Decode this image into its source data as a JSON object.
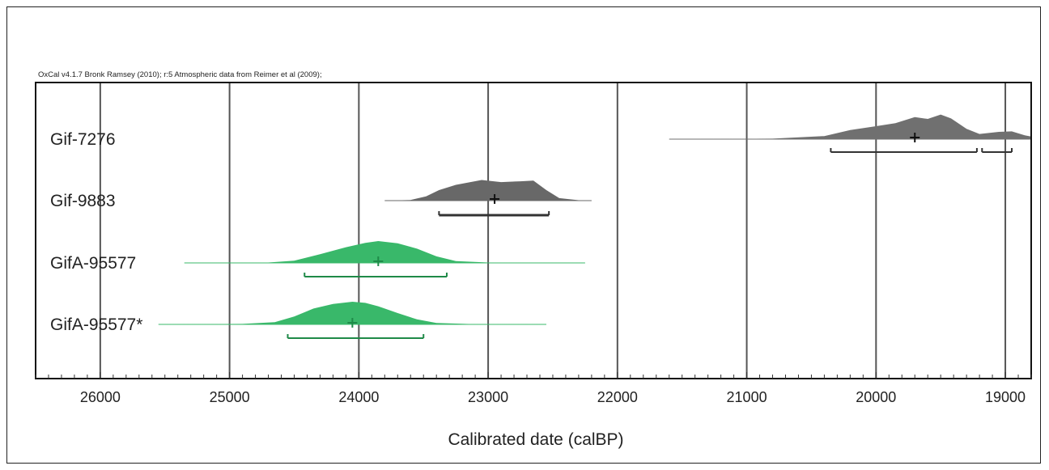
{
  "chart_data": {
    "type": "area",
    "header": "OxCal v4.1.7 Bronk Ramsey (2010); r:5 Atmospheric data from Reimer et al (2009);",
    "xlabel": "Calibrated date (calBP)",
    "x_axis_reversed": true,
    "xlim": [
      26500,
      18800
    ],
    "xticks": [
      26000,
      25000,
      24000,
      23000,
      22000,
      21000,
      20000,
      19000
    ],
    "minor_tick_step": 100,
    "grid": "vertical lines at major ticks",
    "series": [
      {
        "name": "Gif-7276",
        "color": "#707070",
        "line_range": [
          21600,
          18800
        ],
        "mean": 19700,
        "ranges": [
          [
            20350,
            19220
          ],
          [
            19180,
            18950
          ]
        ],
        "density": [
          [
            21600,
            0
          ],
          [
            20800,
            0.02
          ],
          [
            20400,
            0.12
          ],
          [
            20200,
            0.35
          ],
          [
            20000,
            0.5
          ],
          [
            19850,
            0.62
          ],
          [
            19700,
            0.85
          ],
          [
            19600,
            0.78
          ],
          [
            19500,
            0.95
          ],
          [
            19420,
            0.8
          ],
          [
            19300,
            0.4
          ],
          [
            19200,
            0.2
          ],
          [
            19050,
            0.28
          ],
          [
            18950,
            0.3
          ],
          [
            18850,
            0.15
          ],
          [
            18800,
            0.1
          ]
        ]
      },
      {
        "name": "Gif-9883",
        "color": "#686868",
        "line_range": [
          23800,
          22200
        ],
        "mean": 22950,
        "ranges": [
          [
            23380,
            22530
          ]
        ],
        "density": [
          [
            23800,
            0
          ],
          [
            23600,
            0.03
          ],
          [
            23480,
            0.2
          ],
          [
            23380,
            0.5
          ],
          [
            23250,
            0.75
          ],
          [
            23050,
            0.98
          ],
          [
            22900,
            0.88
          ],
          [
            22750,
            0.92
          ],
          [
            22650,
            0.95
          ],
          [
            22550,
            0.5
          ],
          [
            22450,
            0.12
          ],
          [
            22300,
            0.02
          ],
          [
            22200,
            0
          ]
        ]
      },
      {
        "name": "GifA-95577",
        "color": "#39b86a",
        "line_range": [
          25350,
          22250
        ],
        "mean": 23850,
        "ranges": [
          [
            24420,
            23320
          ]
        ],
        "density": [
          [
            25350,
            0
          ],
          [
            24700,
            0.02
          ],
          [
            24500,
            0.1
          ],
          [
            24300,
            0.4
          ],
          [
            24100,
            0.72
          ],
          [
            23950,
            0.92
          ],
          [
            23850,
            1.0
          ],
          [
            23700,
            0.9
          ],
          [
            23550,
            0.65
          ],
          [
            23400,
            0.3
          ],
          [
            23250,
            0.08
          ],
          [
            23000,
            0.02
          ],
          [
            22250,
            0
          ]
        ]
      },
      {
        "name": "GifA-95577*",
        "color": "#39b86a",
        "line_range": [
          25550,
          22550
        ],
        "mean": 24050,
        "ranges": [
          [
            24550,
            23500
          ]
        ],
        "density": [
          [
            25550,
            0
          ],
          [
            24900,
            0.02
          ],
          [
            24650,
            0.1
          ],
          [
            24500,
            0.35
          ],
          [
            24350,
            0.7
          ],
          [
            24200,
            0.9
          ],
          [
            24050,
            1.0
          ],
          [
            23950,
            0.95
          ],
          [
            23850,
            0.8
          ],
          [
            23700,
            0.5
          ],
          [
            23550,
            0.22
          ],
          [
            23400,
            0.06
          ],
          [
            23100,
            0.01
          ],
          [
            22550,
            0
          ]
        ]
      }
    ]
  }
}
